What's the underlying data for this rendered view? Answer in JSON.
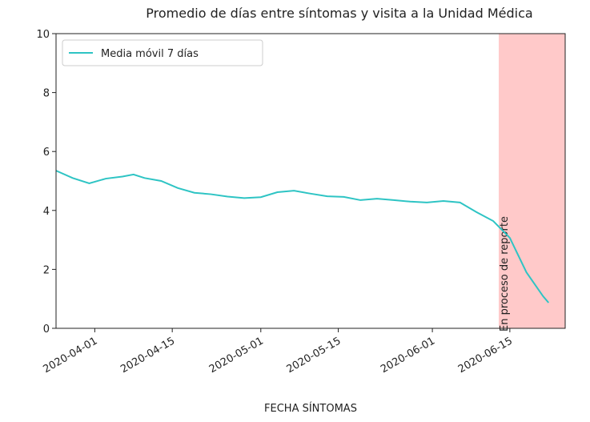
{
  "chart_data": {
    "type": "line",
    "title": "Promedio de días entre síntomas y visita a la Unidad Médica",
    "xlabel": "FECHA SÍNTOMAS",
    "x": [
      "2020-03-25",
      "2020-03-28",
      "2020-03-31",
      "2020-04-03",
      "2020-04-06",
      "2020-04-08",
      "2020-04-10",
      "2020-04-13",
      "2020-04-16",
      "2020-04-19",
      "2020-04-22",
      "2020-04-25",
      "2020-04-28",
      "2020-05-01",
      "2020-05-04",
      "2020-05-07",
      "2020-05-10",
      "2020-05-13",
      "2020-05-16",
      "2020-05-19",
      "2020-05-22",
      "2020-05-25",
      "2020-05-28",
      "2020-05-31",
      "2020-06-03",
      "2020-06-06",
      "2020-06-09",
      "2020-06-12",
      "2020-06-15",
      "2020-06-18",
      "2020-06-21",
      "2020-06-22"
    ],
    "series": [
      {
        "name": "Media móvil 7 días",
        "color": "#2ec4c4",
        "values": [
          5.35,
          5.1,
          4.92,
          5.08,
          5.15,
          5.22,
          5.1,
          5.0,
          4.76,
          4.6,
          4.55,
          4.47,
          4.42,
          4.45,
          4.62,
          4.67,
          4.57,
          4.48,
          4.46,
          4.35,
          4.4,
          4.35,
          4.3,
          4.27,
          4.32,
          4.27,
          3.94,
          3.64,
          3.07,
          1.9,
          1.09,
          0.87
        ]
      }
    ],
    "xlim": [
      "2020-03-25",
      "2020-06-25"
    ],
    "xticks": [
      "2020-04-01",
      "2020-04-15",
      "2020-05-01",
      "2020-05-15",
      "2020-06-01",
      "2020-06-15"
    ],
    "ylim": [
      0,
      10
    ],
    "yticks": [
      0,
      2,
      4,
      6,
      8,
      10
    ],
    "span": {
      "start": "2020-06-13",
      "end": "2020-06-25",
      "color": "#ffc9c9",
      "label": "En proceso de reporte"
    },
    "legend": "upper left",
    "grid": false
  }
}
